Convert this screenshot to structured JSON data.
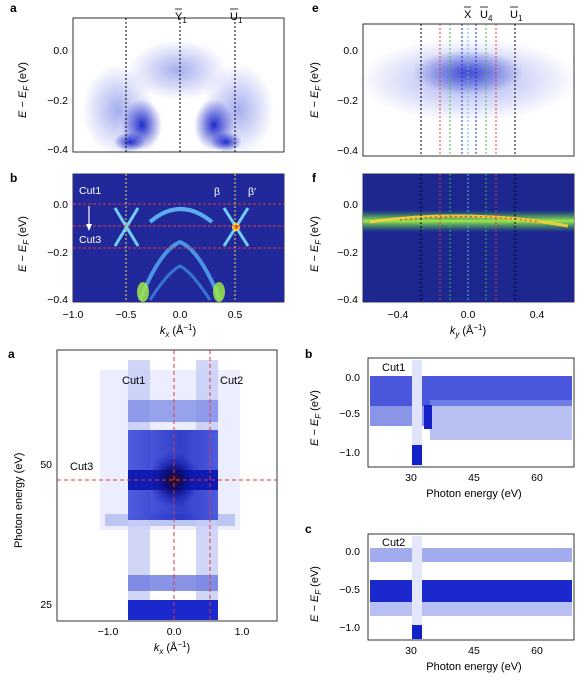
{
  "panel_labels": {
    "a_top": "a",
    "b_top": "b",
    "e_top": "e",
    "f_top": "f",
    "a_bottom": "a",
    "b_bottom": "b",
    "c_bottom": "c"
  },
  "top_left": {
    "energy_axis": {
      "label_main": "E − E",
      "label_sub": "F",
      "label_unit": " (eV)",
      "ticks": [
        "0.0",
        "−0.2",
        "−0.4"
      ]
    },
    "kx_axis": {
      "label_k": "k",
      "label_sub": "x",
      "label_unit": " (Å",
      "label_exp": "−1",
      "label_close": ")",
      "ticks": [
        "−1.0",
        "−0.5",
        "0.0",
        "0.5"
      ]
    },
    "points": {
      "y1": "Y",
      "y1_sub": "1",
      "u1": "U",
      "u1_sub": "1"
    },
    "cut_labels": {
      "cut1": "Cut1",
      "cut3": "Cut3"
    },
    "band_labels": {
      "beta": "β",
      "beta_prime": "β′"
    }
  },
  "top_right": {
    "energy_axis": {
      "label_main": "E − E",
      "label_sub": "F",
      "label_unit": " (eV)",
      "ticks": [
        "0.0",
        "−0.2",
        "−0.4"
      ]
    },
    "ky_axis": {
      "label_k": "k",
      "label_sub": "y",
      "label_unit": " (Å",
      "label_exp": "−1",
      "label_close": ")",
      "ticks": [
        "−0.4",
        "0.0",
        "0.4"
      ]
    },
    "points": {
      "x": "X",
      "u4": "U",
      "u4_sub": "4",
      "u1": "U",
      "u1_sub": "1"
    }
  },
  "bottom_left": {
    "y_axis_label": "Photon energy (eV)",
    "y_ticks": [
      "50",
      "25"
    ],
    "x_ticks": [
      "−1.0",
      "0.0",
      "1.0"
    ],
    "x_label_k": "k",
    "x_label_sub": "x",
    "x_label_unit": " (Å",
    "x_label_exp": "−1",
    "x_label_close": ")",
    "cut_labels": {
      "cut1": "Cut1",
      "cut2": "Cut2",
      "cut3": "Cut3"
    }
  },
  "bottom_right": {
    "energy_axis": {
      "label_main": "E − E",
      "label_sub": "F",
      "label_unit": " (eV)",
      "ticks": [
        "0.0",
        "−0.5",
        "−1.0"
      ]
    },
    "x_label": "Photon energy (eV)",
    "x_ticks": [
      "30",
      "45",
      "60"
    ],
    "panel_b_title": "Cut1",
    "panel_c_title": "Cut2"
  },
  "colors": {
    "blue_intensity": "#1a2ad6",
    "red_dashed": "#e03a3a",
    "yellow_dashed": "#f2e24a",
    "cut_line_dark": "#b01c1c"
  }
}
